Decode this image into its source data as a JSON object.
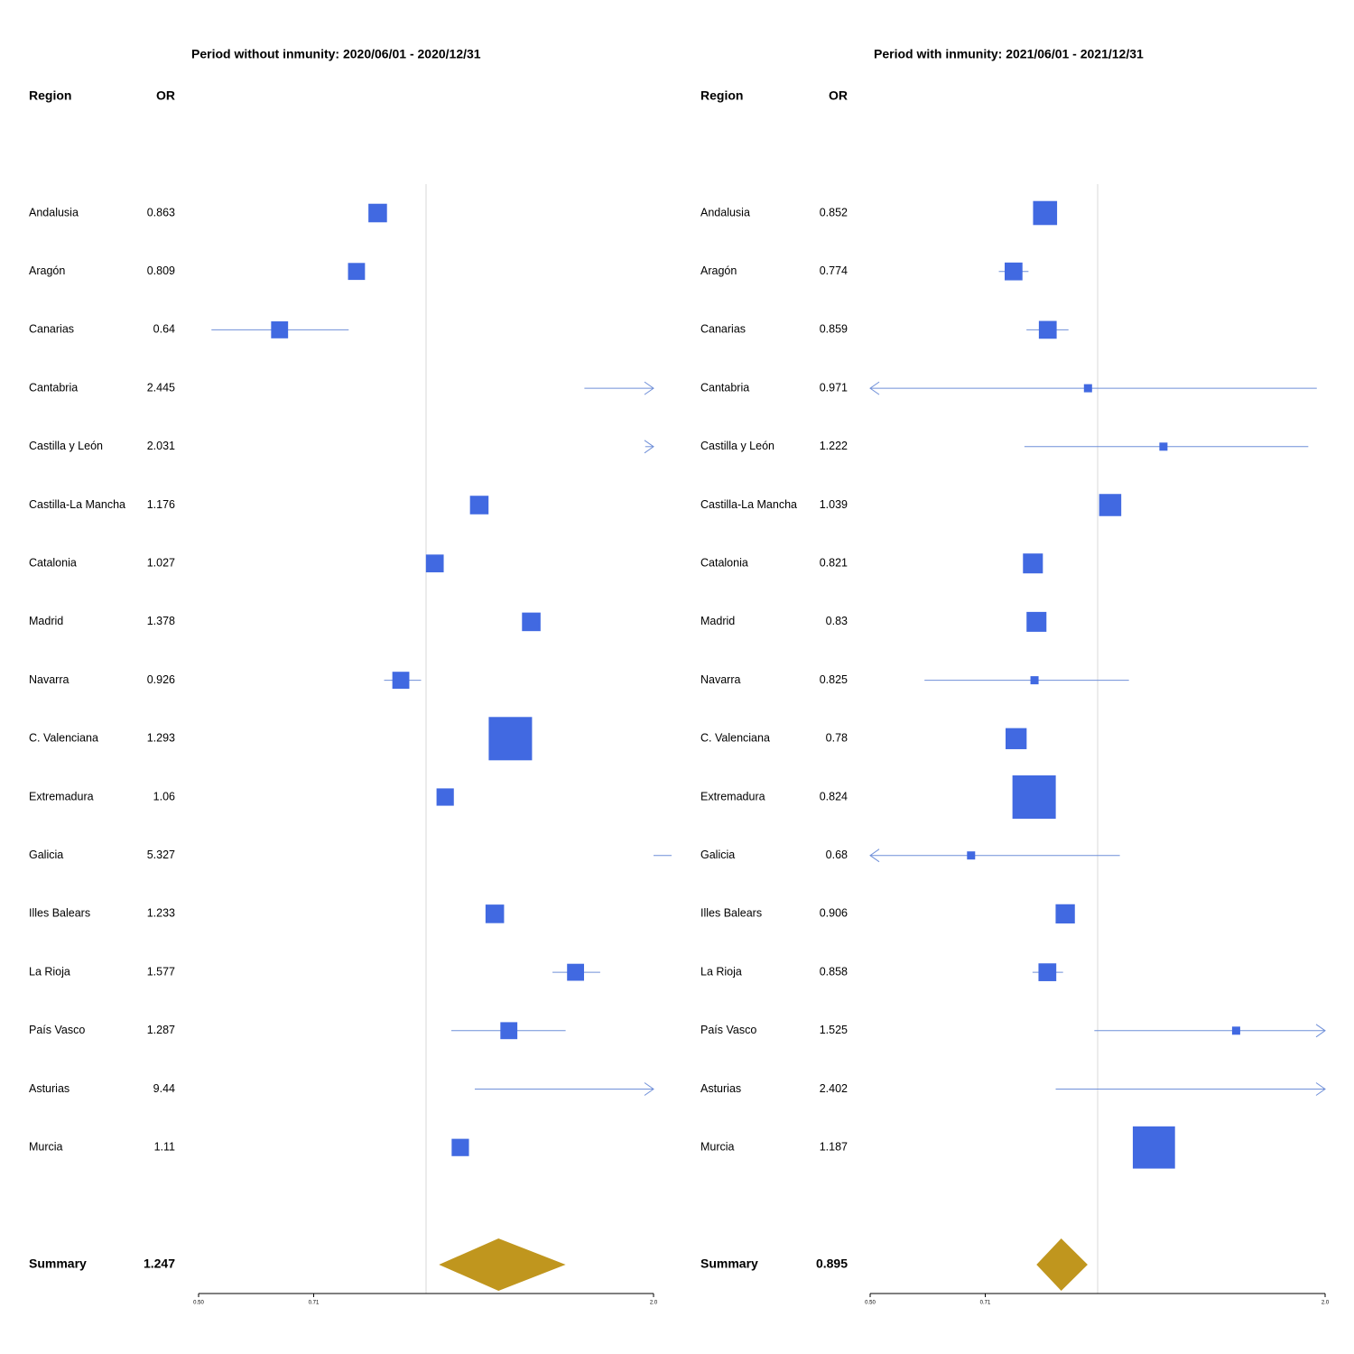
{
  "chart_data": [
    {
      "type": "forest",
      "title": "Period without inmunity: 2020/06/01 - 2020/12/31",
      "col_region": "Region",
      "col_or": "OR",
      "x_scale": "log",
      "xlim": [
        0.5,
        2.0
      ],
      "reference_line": 1.0,
      "ticks": [
        0.5,
        0.71,
        2.0
      ],
      "tick_labels": [
        "0.50",
        "0.71",
        "2.0"
      ],
      "colors": {
        "box": "#4169E1",
        "ci": "#6F8FD8",
        "summary": "#C0961E",
        "refline": "#D9D9D9"
      },
      "rows": [
        {
          "region": "Andalusia",
          "or_label": "0.863",
          "or": 0.863,
          "lower": 0.855,
          "upper": 0.871,
          "weight": 0.03
        },
        {
          "region": "Aragón",
          "or_label": "0.809",
          "or": 0.809,
          "lower": 0.8,
          "upper": 0.818,
          "weight": 0.02
        },
        {
          "region": "Canarias",
          "or_label": "0.64",
          "or": 0.64,
          "lower": 0.52,
          "upper": 0.79,
          "weight": 0.02
        },
        {
          "region": "Cantabria",
          "or_label": "2.445",
          "or": 2.445,
          "lower": 1.62,
          "upper": 3.5,
          "weight": 0.0
        },
        {
          "region": "Castilla y León",
          "or_label": "2.031",
          "or": 2.031,
          "lower": 1.95,
          "upper": 2.3,
          "weight": 0.0
        },
        {
          "region": "Castilla-La Mancha",
          "or_label": "1.176",
          "or": 1.176,
          "lower": 1.165,
          "upper": 1.187,
          "weight": 0.03
        },
        {
          "region": "Catalonia",
          "or_label": "1.027",
          "or": 1.027,
          "lower": 1.02,
          "upper": 1.034,
          "weight": 0.025
        },
        {
          "region": "Madrid",
          "or_label": "1.378",
          "or": 1.378,
          "lower": 1.37,
          "upper": 1.386,
          "weight": 0.03
        },
        {
          "region": "Navarra",
          "or_label": "0.926",
          "or": 0.926,
          "lower": 0.88,
          "upper": 0.985,
          "weight": 0.02
        },
        {
          "region": "C. Valenciana",
          "or_label": "1.293",
          "or": 1.293,
          "lower": 1.285,
          "upper": 1.301,
          "weight": 0.45
        },
        {
          "region": "Extremadura",
          "or_label": "1.06",
          "or": 1.06,
          "lower": 1.04,
          "upper": 1.08,
          "weight": 0.022
        },
        {
          "region": "Galicia",
          "or_label": "5.327",
          "or": 5.327,
          "lower": 2.0,
          "upper": 2.1,
          "weight": 0.0
        },
        {
          "region": "Illes Balears",
          "or_label": "1.233",
          "or": 1.233,
          "lower": 1.22,
          "upper": 1.246,
          "weight": 0.03
        },
        {
          "region": "La Rioja",
          "or_label": "1.577",
          "or": 1.577,
          "lower": 1.47,
          "upper": 1.7,
          "weight": 0.02
        },
        {
          "region": "País Vasco",
          "or_label": "1.287",
          "or": 1.287,
          "lower": 1.08,
          "upper": 1.53,
          "weight": 0.02
        },
        {
          "region": "Asturias",
          "or_label": "9.44",
          "or": 9.44,
          "lower": 1.16,
          "upper": 25.0,
          "weight": 0.0
        },
        {
          "region": "Murcia",
          "or_label": "1.11",
          "or": 1.11,
          "lower": 1.102,
          "upper": 1.118,
          "weight": 0.022
        }
      ],
      "summary": {
        "label": "Summary",
        "or_label": "1.247",
        "or": 1.247,
        "lower": 1.04,
        "upper": 1.53
      }
    },
    {
      "type": "forest",
      "title": "Period with inmunity: 2021/06/01 - 2021/12/31",
      "col_region": "Region",
      "col_or": "OR",
      "x_scale": "log",
      "xlim": [
        0.5,
        2.0
      ],
      "reference_line": 1.0,
      "ticks": [
        0.5,
        0.71,
        2.0
      ],
      "tick_labels": [
        "0.50",
        "0.71",
        "2.0"
      ],
      "colors": {
        "box": "#4169E1",
        "ci": "#6F8FD8",
        "summary": "#C0961E",
        "refline": "#D9D9D9"
      },
      "rows": [
        {
          "region": "Andalusia",
          "or_label": "0.852",
          "or": 0.852,
          "lower": 0.845,
          "upper": 0.86,
          "weight": 0.08
        },
        {
          "region": "Aragón",
          "or_label": "0.774",
          "or": 0.774,
          "lower": 0.74,
          "upper": 0.81,
          "weight": 0.025
        },
        {
          "region": "Canarias",
          "or_label": "0.859",
          "or": 0.859,
          "lower": 0.805,
          "upper": 0.915,
          "weight": 0.025
        },
        {
          "region": "Cantabria",
          "or_label": "0.971",
          "or": 0.971,
          "lower": 0.3,
          "upper": 1.95,
          "weight": 0.0
        },
        {
          "region": "Castilla y León",
          "or_label": "1.222",
          "or": 1.222,
          "lower": 0.8,
          "upper": 1.9,
          "weight": 0.0
        },
        {
          "region": "Castilla-La Mancha",
          "or_label": "1.039",
          "or": 1.039,
          "lower": 1.03,
          "upper": 1.048,
          "weight": 0.06
        },
        {
          "region": "Catalonia",
          "or_label": "0.821",
          "or": 0.821,
          "lower": 0.8,
          "upper": 0.84,
          "weight": 0.04
        },
        {
          "region": "Madrid",
          "or_label": "0.83",
          "or": 0.83,
          "lower": 0.815,
          "upper": 0.847,
          "weight": 0.04
        },
        {
          "region": "Navarra",
          "or_label": "0.825",
          "or": 0.825,
          "lower": 0.59,
          "upper": 1.1,
          "weight": 0.0
        },
        {
          "region": "C. Valenciana",
          "or_label": "0.78",
          "or": 0.78,
          "lower": 0.772,
          "upper": 0.788,
          "weight": 0.05
        },
        {
          "region": "Extremadura",
          "or_label": "0.824",
          "or": 0.824,
          "lower": 0.815,
          "upper": 0.833,
          "weight": 0.45
        },
        {
          "region": "Galicia",
          "or_label": "0.68",
          "or": 0.68,
          "lower": 0.3,
          "upper": 1.07,
          "weight": 0.0
        },
        {
          "region": "Illes Balears",
          "or_label": "0.906",
          "or": 0.906,
          "lower": 0.88,
          "upper": 0.93,
          "weight": 0.035
        },
        {
          "region": "La Rioja",
          "or_label": "0.858",
          "or": 0.858,
          "lower": 0.82,
          "upper": 0.9,
          "weight": 0.025
        },
        {
          "region": "País Vasco",
          "or_label": "1.525",
          "or": 1.525,
          "lower": 0.99,
          "upper": 2.3,
          "weight": 0.0
        },
        {
          "region": "Asturias",
          "or_label": "2.402",
          "or": 2.402,
          "lower": 0.88,
          "upper": 6.5,
          "weight": 0.0
        },
        {
          "region": "Murcia",
          "or_label": "1.187",
          "or": 1.187,
          "lower": 1.18,
          "upper": 1.195,
          "weight": 0.42
        }
      ],
      "summary": {
        "label": "Summary",
        "or_label": "0.895",
        "or": 0.895,
        "lower": 0.83,
        "upper": 0.97
      }
    }
  ]
}
